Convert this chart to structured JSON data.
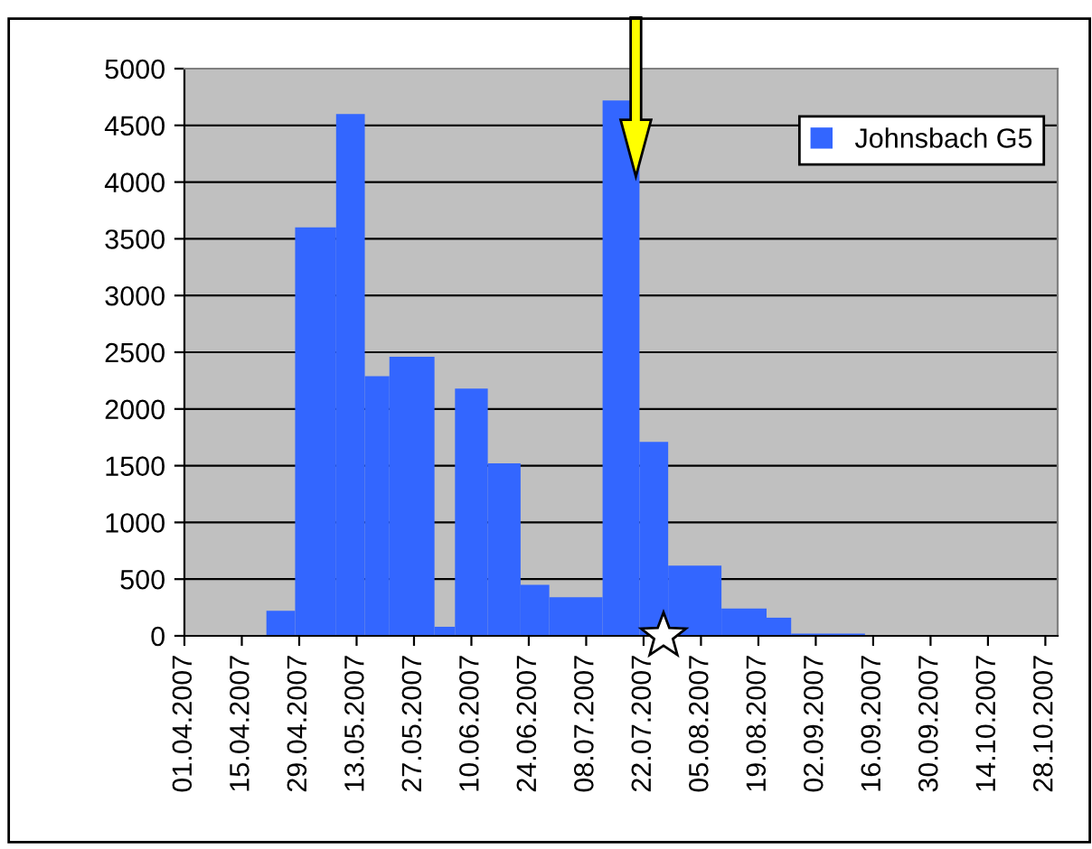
{
  "chart_data": {
    "type": "histogram",
    "bins": [
      "2007-04-21",
      "2007-04-28",
      "2007-05-08",
      "2007-05-15",
      "2007-05-21",
      "2007-06-01",
      "2007-06-06",
      "2007-06-14",
      "2007-06-22",
      "2007-06-29",
      "2007-07-12",
      "2007-07-21",
      "2007-07-28",
      "2007-08-10",
      "2007-08-21",
      "2007-08-27",
      "2007-09-14"
    ],
    "series": [
      {
        "name": "Johnsbach G5",
        "color": "#3366ff",
        "values": [
          220,
          3600,
          4600,
          2290,
          2460,
          80,
          2180,
          1520,
          450,
          340,
          4720,
          1710,
          620,
          240,
          160,
          20
        ]
      }
    ],
    "xlim": [
      "2007-04-01",
      "2007-10-31"
    ],
    "xticks": [
      {
        "value": "2007-04-01",
        "label": "01.04.2007"
      },
      {
        "value": "2007-04-15",
        "label": "15.04.2007"
      },
      {
        "value": "2007-04-29",
        "label": "29.04.2007"
      },
      {
        "value": "2007-05-13",
        "label": "13.05.2007"
      },
      {
        "value": "2007-05-27",
        "label": "27.05.2007"
      },
      {
        "value": "2007-06-10",
        "label": "10.06.2007"
      },
      {
        "value": "2007-06-24",
        "label": "24.06.2007"
      },
      {
        "value": "2007-07-08",
        "label": "08.07.2007"
      },
      {
        "value": "2007-07-22",
        "label": "22.07.2007"
      },
      {
        "value": "2007-08-05",
        "label": "05.08.2007"
      },
      {
        "value": "2007-08-19",
        "label": "19.08.2007"
      },
      {
        "value": "2007-09-02",
        "label": "02.09.2007"
      },
      {
        "value": "2007-09-16",
        "label": "16.09.2007"
      },
      {
        "value": "2007-09-30",
        "label": "30.09.2007"
      },
      {
        "value": "2007-10-14",
        "label": "14.10.2007"
      },
      {
        "value": "2007-10-28",
        "label": "28.10.2007"
      }
    ],
    "ylim": [
      0,
      5000
    ],
    "yticks": [
      0,
      500,
      1000,
      1500,
      2000,
      2500,
      3000,
      3500,
      4000,
      4500,
      5000
    ],
    "grid": "y",
    "legend": "top right"
  }
}
